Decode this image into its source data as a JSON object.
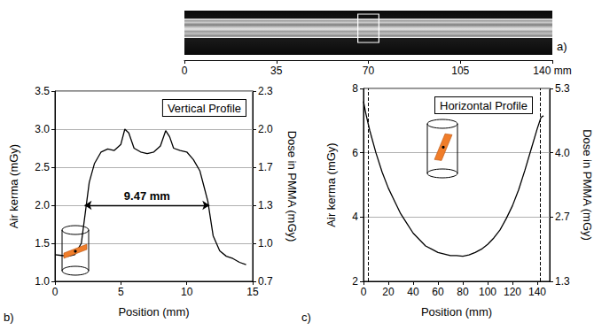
{
  "chart_data": [
    {
      "type": "image",
      "panel": "a)",
      "xlim": [
        0,
        140
      ],
      "xticks": [
        0,
        35,
        70,
        105,
        {
          "value": 140,
          "label": "140 mm"
        }
      ],
      "roi": [
        66,
        74
      ],
      "tick_labels": "x"
    },
    {
      "type": "line",
      "panel": "b)",
      "title": "Vertical Profile",
      "x_label": "Position (mm)",
      "y_label": "Air kerma (mGy)",
      "y2_label": "Dose in PMMA (mGy)",
      "xlim": [
        0,
        15
      ],
      "xticks": [
        0,
        5,
        10,
        15
      ],
      "ylim": [
        1,
        3.5
      ],
      "yticks": [
        {
          "value": 1,
          "label": "1.0"
        },
        1.5,
        {
          "value": 2,
          "label": "2.0"
        },
        2.5,
        {
          "value": 3,
          "label": "3.0"
        },
        3.5
      ],
      "y2lim": [
        0.665,
        2.3275
      ],
      "y2ticks": [
        {
          "value": 0.665,
          "label": "0.7"
        },
        {
          "value": 0.9975,
          "label": "1.0"
        },
        {
          "value": 1.33,
          "label": "1.3"
        },
        {
          "value": 1.6625,
          "label": "1.7"
        },
        {
          "value": 1.995,
          "label": "2.0"
        },
        {
          "value": 2.3275,
          "label": "2.3"
        }
      ],
      "grid": true,
      "color": "#000000",
      "x": [
        0,
        0.5,
        1,
        1.5,
        2,
        2.3,
        2.6,
        3,
        3.5,
        4,
        4.5,
        5,
        5.3,
        5.6,
        6,
        6.5,
        7,
        7.5,
        8,
        8.4,
        8.7,
        9,
        9.5,
        10,
        10.5,
        11,
        11.3,
        11.6,
        12,
        12.5,
        13,
        13.5,
        14,
        14.5
      ],
      "values": [
        1.35,
        1.34,
        1.33,
        1.35,
        1.5,
        1.9,
        2.3,
        2.55,
        2.7,
        2.74,
        2.72,
        2.8,
        3.0,
        2.95,
        2.75,
        2.7,
        2.68,
        2.7,
        2.78,
        2.98,
        2.9,
        2.75,
        2.72,
        2.7,
        2.6,
        2.45,
        2.25,
        2.05,
        1.6,
        1.4,
        1.33,
        1.3,
        1.25,
        1.22
      ],
      "annotations": [
        {
          "text": "9.47 mm",
          "x": [
            2.25,
            11.72
          ],
          "y": 2.0
        }
      ]
    },
    {
      "type": "line",
      "panel": "c)",
      "title": "Horizontal Profile",
      "x_label": "Position (mm)",
      "y_label": "Air kerma (mGy)",
      "y2_label": "Dose in PMMA (mGy)",
      "xlim": [
        0,
        150
      ],
      "xticks": [
        0,
        20,
        40,
        60,
        80,
        100,
        120,
        140
      ],
      "ylim": [
        2,
        8
      ],
      "yticks": [
        2,
        4,
        6,
        8
      ],
      "y2lim": [
        1.33,
        5.32
      ],
      "y2ticks": [
        {
          "value": 1.33,
          "label": "1.3"
        },
        {
          "value": 2.66,
          "label": "2.7"
        },
        {
          "value": 3.99,
          "label": "4.0"
        },
        {
          "value": 5.32,
          "label": "5.3"
        }
      ],
      "grid": true,
      "color": "#000000",
      "x": [
        0,
        2,
        5,
        10,
        15,
        20,
        25,
        30,
        35,
        40,
        45,
        50,
        55,
        60,
        65,
        70,
        75,
        80,
        85,
        90,
        95,
        100,
        105,
        110,
        115,
        120,
        125,
        130,
        135,
        140,
        143,
        145
      ],
      "values": [
        7.6,
        7.2,
        6.7,
        6.0,
        5.4,
        4.9,
        4.5,
        4.1,
        3.8,
        3.5,
        3.3,
        3.1,
        3.0,
        2.9,
        2.85,
        2.8,
        2.8,
        2.78,
        2.82,
        2.9,
        3.0,
        3.15,
        3.35,
        3.6,
        3.95,
        4.35,
        4.85,
        5.45,
        6.1,
        6.75,
        7.1,
        7.15
      ],
      "vlines": [
        4,
        142
      ]
    }
  ]
}
